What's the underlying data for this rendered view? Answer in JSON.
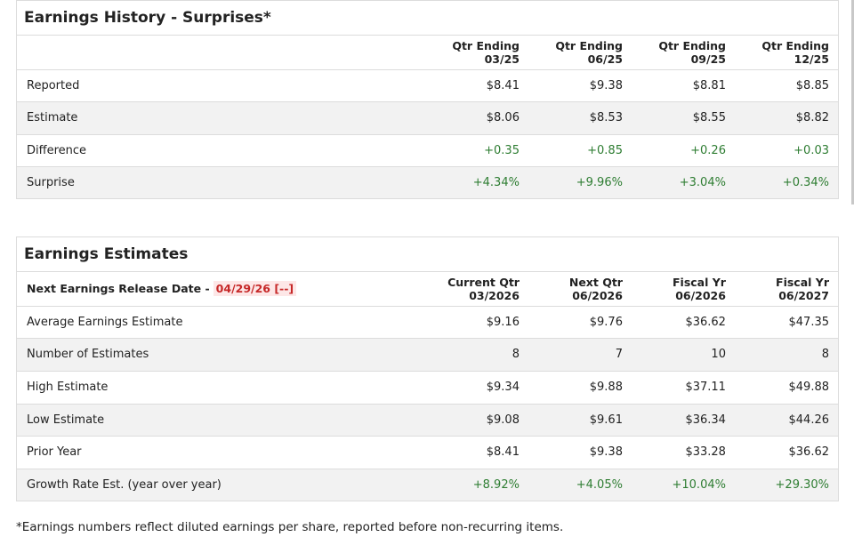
{
  "history": {
    "title": "Earnings History - Surprises*",
    "columns": [
      {
        "line1": "Qtr Ending",
        "line2": "03/25"
      },
      {
        "line1": "Qtr Ending",
        "line2": "06/25"
      },
      {
        "line1": "Qtr Ending",
        "line2": "09/25"
      },
      {
        "line1": "Qtr Ending",
        "line2": "12/25"
      }
    ],
    "rows": [
      {
        "label": "Reported",
        "values": [
          "$8.41",
          "$9.38",
          "$8.81",
          "$8.85"
        ]
      },
      {
        "label": "Estimate",
        "values": [
          "$8.06",
          "$8.53",
          "$8.55",
          "$8.82"
        ]
      },
      {
        "label": "Difference",
        "values": [
          "+0.35",
          "+0.85",
          "+0.26",
          "+0.03"
        ]
      },
      {
        "label": "Surprise",
        "values": [
          "+4.34%",
          "+9.96%",
          "+3.04%",
          "+0.34%"
        ]
      }
    ]
  },
  "estimates": {
    "title": "Earnings Estimates",
    "release_label": "Next Earnings Release Date -",
    "release_date": "04/29/26 [--]",
    "columns": [
      {
        "line1": "Current Qtr",
        "line2": "03/2026"
      },
      {
        "line1": "Next Qtr",
        "line2": "06/2026"
      },
      {
        "line1": "Fiscal Yr",
        "line2": "06/2026"
      },
      {
        "line1": "Fiscal Yr",
        "line2": "06/2027"
      }
    ],
    "rows": [
      {
        "label": "Average Earnings Estimate",
        "values": [
          "$9.16",
          "$9.76",
          "$36.62",
          "$47.35"
        ]
      },
      {
        "label": "Number of Estimates",
        "values": [
          "8",
          "7",
          "10",
          "8"
        ]
      },
      {
        "label": "High Estimate",
        "values": [
          "$9.34",
          "$9.88",
          "$37.11",
          "$49.88"
        ]
      },
      {
        "label": "Low Estimate",
        "values": [
          "$9.08",
          "$9.61",
          "$36.34",
          "$44.26"
        ]
      },
      {
        "label": "Prior Year",
        "values": [
          "$8.41",
          "$9.38",
          "$33.28",
          "$36.62"
        ]
      },
      {
        "label": "Growth Rate Est. (year over year)",
        "values": [
          "+8.92%",
          "+4.05%",
          "+10.04%",
          "+29.30%"
        ]
      }
    ]
  },
  "footnote": "*Earnings numbers reflect diluted earnings per share, reported before non-recurring items.",
  "colors": {
    "positive": "#2e7d32",
    "release_date": "#c62828",
    "alt_row": "#f2f2f2",
    "border": "#dcdcdc"
  }
}
